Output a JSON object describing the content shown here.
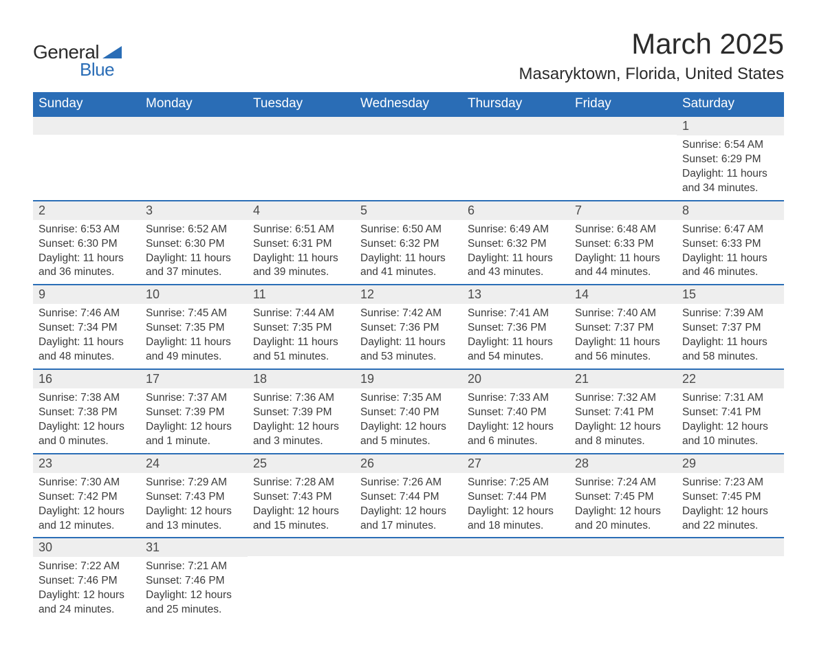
{
  "logo": {
    "text_general": "General",
    "text_blue": "Blue",
    "tri_color": "#2a6db6"
  },
  "title": "March 2025",
  "location": "Masaryktown, Florida, United States",
  "colors": {
    "header_bg": "#2a6db6",
    "header_text": "#ffffff",
    "daynum_bg": "#eeeeee",
    "text": "#3a3a3a",
    "row_border": "#2a6db6",
    "page_bg": "#ffffff"
  },
  "typography": {
    "title_fontsize": 42,
    "location_fontsize": 24,
    "dayhead_fontsize": 19,
    "cell_fontsize": 15.5,
    "font_family": "Arial"
  },
  "layout": {
    "cols": 7,
    "rows": 6,
    "leading_blanks": 6
  },
  "day_headers": [
    "Sunday",
    "Monday",
    "Tuesday",
    "Wednesday",
    "Thursday",
    "Friday",
    "Saturday"
  ],
  "days": [
    {
      "n": 1,
      "sunrise": "6:54 AM",
      "sunset": "6:29 PM",
      "dl": "11 hours and 34 minutes."
    },
    {
      "n": 2,
      "sunrise": "6:53 AM",
      "sunset": "6:30 PM",
      "dl": "11 hours and 36 minutes."
    },
    {
      "n": 3,
      "sunrise": "6:52 AM",
      "sunset": "6:30 PM",
      "dl": "11 hours and 37 minutes."
    },
    {
      "n": 4,
      "sunrise": "6:51 AM",
      "sunset": "6:31 PM",
      "dl": "11 hours and 39 minutes."
    },
    {
      "n": 5,
      "sunrise": "6:50 AM",
      "sunset": "6:32 PM",
      "dl": "11 hours and 41 minutes."
    },
    {
      "n": 6,
      "sunrise": "6:49 AM",
      "sunset": "6:32 PM",
      "dl": "11 hours and 43 minutes."
    },
    {
      "n": 7,
      "sunrise": "6:48 AM",
      "sunset": "6:33 PM",
      "dl": "11 hours and 44 minutes."
    },
    {
      "n": 8,
      "sunrise": "6:47 AM",
      "sunset": "6:33 PM",
      "dl": "11 hours and 46 minutes."
    },
    {
      "n": 9,
      "sunrise": "7:46 AM",
      "sunset": "7:34 PM",
      "dl": "11 hours and 48 minutes."
    },
    {
      "n": 10,
      "sunrise": "7:45 AM",
      "sunset": "7:35 PM",
      "dl": "11 hours and 49 minutes."
    },
    {
      "n": 11,
      "sunrise": "7:44 AM",
      "sunset": "7:35 PM",
      "dl": "11 hours and 51 minutes."
    },
    {
      "n": 12,
      "sunrise": "7:42 AM",
      "sunset": "7:36 PM",
      "dl": "11 hours and 53 minutes."
    },
    {
      "n": 13,
      "sunrise": "7:41 AM",
      "sunset": "7:36 PM",
      "dl": "11 hours and 54 minutes."
    },
    {
      "n": 14,
      "sunrise": "7:40 AM",
      "sunset": "7:37 PM",
      "dl": "11 hours and 56 minutes."
    },
    {
      "n": 15,
      "sunrise": "7:39 AM",
      "sunset": "7:37 PM",
      "dl": "11 hours and 58 minutes."
    },
    {
      "n": 16,
      "sunrise": "7:38 AM",
      "sunset": "7:38 PM",
      "dl": "12 hours and 0 minutes."
    },
    {
      "n": 17,
      "sunrise": "7:37 AM",
      "sunset": "7:39 PM",
      "dl": "12 hours and 1 minute."
    },
    {
      "n": 18,
      "sunrise": "7:36 AM",
      "sunset": "7:39 PM",
      "dl": "12 hours and 3 minutes."
    },
    {
      "n": 19,
      "sunrise": "7:35 AM",
      "sunset": "7:40 PM",
      "dl": "12 hours and 5 minutes."
    },
    {
      "n": 20,
      "sunrise": "7:33 AM",
      "sunset": "7:40 PM",
      "dl": "12 hours and 6 minutes."
    },
    {
      "n": 21,
      "sunrise": "7:32 AM",
      "sunset": "7:41 PM",
      "dl": "12 hours and 8 minutes."
    },
    {
      "n": 22,
      "sunrise": "7:31 AM",
      "sunset": "7:41 PM",
      "dl": "12 hours and 10 minutes."
    },
    {
      "n": 23,
      "sunrise": "7:30 AM",
      "sunset": "7:42 PM",
      "dl": "12 hours and 12 minutes."
    },
    {
      "n": 24,
      "sunrise": "7:29 AM",
      "sunset": "7:43 PM",
      "dl": "12 hours and 13 minutes."
    },
    {
      "n": 25,
      "sunrise": "7:28 AM",
      "sunset": "7:43 PM",
      "dl": "12 hours and 15 minutes."
    },
    {
      "n": 26,
      "sunrise": "7:26 AM",
      "sunset": "7:44 PM",
      "dl": "12 hours and 17 minutes."
    },
    {
      "n": 27,
      "sunrise": "7:25 AM",
      "sunset": "7:44 PM",
      "dl": "12 hours and 18 minutes."
    },
    {
      "n": 28,
      "sunrise": "7:24 AM",
      "sunset": "7:45 PM",
      "dl": "12 hours and 20 minutes."
    },
    {
      "n": 29,
      "sunrise": "7:23 AM",
      "sunset": "7:45 PM",
      "dl": "12 hours and 22 minutes."
    },
    {
      "n": 30,
      "sunrise": "7:22 AM",
      "sunset": "7:46 PM",
      "dl": "12 hours and 24 minutes."
    },
    {
      "n": 31,
      "sunrise": "7:21 AM",
      "sunset": "7:46 PM",
      "dl": "12 hours and 25 minutes."
    }
  ],
  "labels": {
    "sunrise": "Sunrise: ",
    "sunset": "Sunset: ",
    "daylight": "Daylight: "
  }
}
